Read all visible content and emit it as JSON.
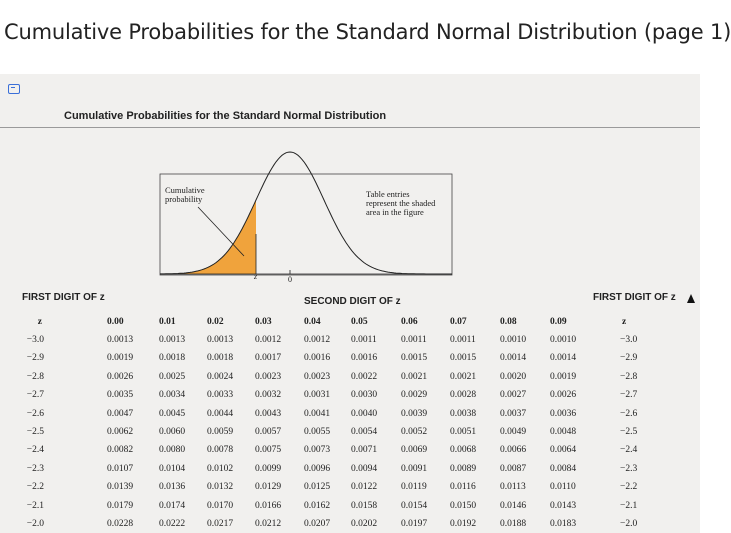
{
  "page": {
    "title": "Cumulative Probabilities for the Standard Normal Distribution (page 1)"
  },
  "document": {
    "header": "Cumulative Probabilities for the Standard Normal Distribution",
    "figure": {
      "left_label": "Cumulative\nprobability",
      "right_label": "Table entries\nrepresent the shaded\narea in the figure",
      "axis_z": "z",
      "axis_zero": "0",
      "shade_color": "#f0a33c"
    },
    "first_digit_label_left": "FIRST DIGIT OF z",
    "second_digit_label": "SECOND DIGIT OF z",
    "first_digit_label_right": "FIRST DIGIT OF z",
    "table": {
      "z_header": "z",
      "columns": [
        "0.00",
        "0.01",
        "0.02",
        "0.03",
        "0.04",
        "0.05",
        "0.06",
        "0.07",
        "0.08",
        "0.09"
      ],
      "rows": [
        {
          "z": "−3.0",
          "values": [
            "0.0013",
            "0.0013",
            "0.0013",
            "0.0012",
            "0.0012",
            "0.0011",
            "0.0011",
            "0.0011",
            "0.0010",
            "0.0010"
          ]
        },
        {
          "z": "−2.9",
          "values": [
            "0.0019",
            "0.0018",
            "0.0018",
            "0.0017",
            "0.0016",
            "0.0016",
            "0.0015",
            "0.0015",
            "0.0014",
            "0.0014"
          ]
        },
        {
          "z": "−2.8",
          "values": [
            "0.0026",
            "0.0025",
            "0.0024",
            "0.0023",
            "0.0023",
            "0.0022",
            "0.0021",
            "0.0021",
            "0.0020",
            "0.0019"
          ]
        },
        {
          "z": "−2.7",
          "values": [
            "0.0035",
            "0.0034",
            "0.0033",
            "0.0032",
            "0.0031",
            "0.0030",
            "0.0029",
            "0.0028",
            "0.0027",
            "0.0026"
          ]
        },
        {
          "z": "−2.6",
          "values": [
            "0.0047",
            "0.0045",
            "0.0044",
            "0.0043",
            "0.0041",
            "0.0040",
            "0.0039",
            "0.0038",
            "0.0037",
            "0.0036"
          ]
        },
        {
          "z": "−2.5",
          "values": [
            "0.0062",
            "0.0060",
            "0.0059",
            "0.0057",
            "0.0055",
            "0.0054",
            "0.0052",
            "0.0051",
            "0.0049",
            "0.0048"
          ]
        },
        {
          "z": "−2.4",
          "values": [
            "0.0082",
            "0.0080",
            "0.0078",
            "0.0075",
            "0.0073",
            "0.0071",
            "0.0069",
            "0.0068",
            "0.0066",
            "0.0064"
          ]
        },
        {
          "z": "−2.3",
          "values": [
            "0.0107",
            "0.0104",
            "0.0102",
            "0.0099",
            "0.0096",
            "0.0094",
            "0.0091",
            "0.0089",
            "0.0087",
            "0.0084"
          ]
        },
        {
          "z": "−2.2",
          "values": [
            "0.0139",
            "0.0136",
            "0.0132",
            "0.0129",
            "0.0125",
            "0.0122",
            "0.0119",
            "0.0116",
            "0.0113",
            "0.0110"
          ]
        },
        {
          "z": "−2.1",
          "values": [
            "0.0179",
            "0.0174",
            "0.0170",
            "0.0166",
            "0.0162",
            "0.0158",
            "0.0154",
            "0.0150",
            "0.0146",
            "0.0143"
          ]
        },
        {
          "z": "−2.0",
          "values": [
            "0.0228",
            "0.0222",
            "0.0217",
            "0.0212",
            "0.0207",
            "0.0202",
            "0.0197",
            "0.0192",
            "0.0188",
            "0.0183"
          ]
        }
      ]
    }
  }
}
